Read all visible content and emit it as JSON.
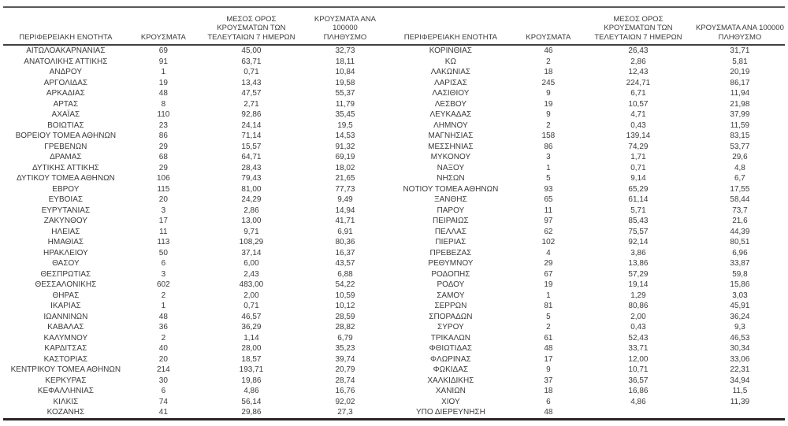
{
  "table": {
    "headers": {
      "region": "ΠΕΡΙΦΕΡΕΙΑΚΗ ΕΝΟΤΗΤΑ",
      "cases": "ΚΡΟΥΣΜΑΤΑ",
      "avg7days": "ΜΕΣΟΣ ΟΡΟΣ\nΚΡΟΥΣΜΑΤΩΝ ΤΩΝ\nΤΕΛΕΥΤΑΙΩΝ 7 ΗΜΕΡΩΝ",
      "per100k": "ΚΡΟΥΣΜΑΤΑ ΑΝΑ 100000\nΠΛΗΘΥΣΜΟ"
    },
    "rows_left": [
      [
        "ΑΙΤΩΛΟΑΚΑΡΝΑΝΙΑΣ",
        "69",
        "45,00",
        "32,73"
      ],
      [
        "ΑΝΑΤΟΛΙΚΗΣ ΑΤΤΙΚΗΣ",
        "91",
        "63,71",
        "18,11"
      ],
      [
        "ΑΝΔΡΟΥ",
        "1",
        "0,71",
        "10,84"
      ],
      [
        "ΑΡΓΟΛΙΔΑΣ",
        "19",
        "13,43",
        "19,58"
      ],
      [
        "ΑΡΚΑΔΙΑΣ",
        "48",
        "47,57",
        "55,37"
      ],
      [
        "ΑΡΤΑΣ",
        "8",
        "2,71",
        "11,79"
      ],
      [
        "ΑΧΑΪΑΣ",
        "110",
        "92,86",
        "35,45"
      ],
      [
        "ΒΟΙΩΤΙΑΣ",
        "23",
        "24,14",
        "19,5"
      ],
      [
        "ΒΟΡΕΙΟΥ ΤΟΜΕΑ ΑΘΗΝΩΝ",
        "86",
        "71,14",
        "14,53"
      ],
      [
        "ΓΡΕΒΕΝΩΝ",
        "29",
        "15,57",
        "91,32"
      ],
      [
        "ΔΡΑΜΑΣ",
        "68",
        "64,71",
        "69,19"
      ],
      [
        "ΔΥΤΙΚΗΣ ΑΤΤΙΚΗΣ",
        "29",
        "28,43",
        "18,02"
      ],
      [
        "ΔΥΤΙΚΟΥ ΤΟΜΕΑ ΑΘΗΝΩΝ",
        "106",
        "79,43",
        "21,65"
      ],
      [
        "ΕΒΡΟΥ",
        "115",
        "81,00",
        "77,73"
      ],
      [
        "ΕΥΒΟΙΑΣ",
        "20",
        "24,29",
        "9,49"
      ],
      [
        "ΕΥΡΥΤΑΝΙΑΣ",
        "3",
        "2,86",
        "14,94"
      ],
      [
        "ΖΑΚΥΝΘΟΥ",
        "17",
        "13,00",
        "41,71"
      ],
      [
        "ΗΛΕΙΑΣ",
        "11",
        "9,71",
        "6,91"
      ],
      [
        "ΗΜΑΘΙΑΣ",
        "113",
        "108,29",
        "80,36"
      ],
      [
        "ΗΡΑΚΛΕΙΟΥ",
        "50",
        "37,14",
        "16,37"
      ],
      [
        "ΘΑΣΟΥ",
        "6",
        "6,00",
        "43,57"
      ],
      [
        "ΘΕΣΠΡΩΤΙΑΣ",
        "3",
        "2,43",
        "6,88"
      ],
      [
        "ΘΕΣΣΑΛΟΝΙΚΗΣ",
        "602",
        "483,00",
        "54,22"
      ],
      [
        "ΘΗΡΑΣ",
        "2",
        "2,00",
        "10,59"
      ],
      [
        "ΙΚΑΡΙΑΣ",
        "1",
        "0,71",
        "10,12"
      ],
      [
        "ΙΩΑΝΝΙΝΩΝ",
        "48",
        "46,57",
        "28,59"
      ],
      [
        "ΚΑΒΑΛΑΣ",
        "36",
        "36,29",
        "28,82"
      ],
      [
        "ΚΑΛΥΜΝΟΥ",
        "2",
        "1,14",
        "6,79"
      ],
      [
        "ΚΑΡΔΙΤΣΑΣ",
        "40",
        "28,00",
        "35,23"
      ],
      [
        "ΚΑΣΤΟΡΙΑΣ",
        "20",
        "18,57",
        "39,74"
      ],
      [
        "ΚΕΝΤΡΙΚΟΥ ΤΟΜΕΑ ΑΘΗΝΩΝ",
        "214",
        "193,71",
        "20,79"
      ],
      [
        "ΚΕΡΚΥΡΑΣ",
        "30",
        "19,86",
        "28,74"
      ],
      [
        "ΚΕΦΑΛΛΗΝΙΑΣ",
        "6",
        "4,86",
        "16,76"
      ],
      [
        "ΚΙΛΚΙΣ",
        "74",
        "56,14",
        "92,02"
      ],
      [
        "ΚΟΖΑΝΗΣ",
        "41",
        "29,86",
        "27,3"
      ]
    ],
    "rows_right": [
      [
        "ΚΟΡΙΝΘΙΑΣ",
        "46",
        "26,43",
        "31,71"
      ],
      [
        "ΚΩ",
        "2",
        "2,86",
        "5,81"
      ],
      [
        "ΛΑΚΩΝΙΑΣ",
        "18",
        "12,43",
        "20,19"
      ],
      [
        "ΛΑΡΙΣΑΣ",
        "245",
        "224,71",
        "86,17"
      ],
      [
        "ΛΑΣΙΘΙΟΥ",
        "9",
        "6,71",
        "11,94"
      ],
      [
        "ΛΕΣΒΟΥ",
        "19",
        "10,57",
        "21,98"
      ],
      [
        "ΛΕΥΚΑΔΑΣ",
        "9",
        "4,71",
        "37,99"
      ],
      [
        "ΛΗΜΝΟΥ",
        "2",
        "0,43",
        "11,59"
      ],
      [
        "ΜΑΓΝΗΣΙΑΣ",
        "158",
        "139,14",
        "83,15"
      ],
      [
        "ΜΕΣΣΗΝΙΑΣ",
        "86",
        "74,29",
        "53,77"
      ],
      [
        "ΜΥΚΟΝΟΥ",
        "3",
        "1,71",
        "29,6"
      ],
      [
        "ΝΑΞΟΥ",
        "1",
        "0,71",
        "4,8"
      ],
      [
        "ΝΗΣΩΝ",
        "5",
        "9,14",
        "6,7"
      ],
      [
        "ΝΟΤΙΟΥ ΤΟΜΕΑ ΑΘΗΝΩΝ",
        "93",
        "65,29",
        "17,55"
      ],
      [
        "ΞΑΝΘΗΣ",
        "65",
        "61,14",
        "58,44"
      ],
      [
        "ΠΑΡΟΥ",
        "11",
        "5,71",
        "73,7"
      ],
      [
        "ΠΕΙΡΑΙΩΣ",
        "97",
        "85,43",
        "21,6"
      ],
      [
        "ΠΕΛΛΑΣ",
        "62",
        "75,57",
        "44,39"
      ],
      [
        "ΠΙΕΡΙΑΣ",
        "102",
        "92,14",
        "80,51"
      ],
      [
        "ΠΡΕΒΕΖΑΣ",
        "4",
        "3,86",
        "6,96"
      ],
      [
        "ΡΕΘΥΜΝΟΥ",
        "29",
        "13,86",
        "33,87"
      ],
      [
        "ΡΟΔΟΠΗΣ",
        "67",
        "57,29",
        "59,8"
      ],
      [
        "ΡΟΔΟΥ",
        "19",
        "19,14",
        "15,86"
      ],
      [
        "ΣΑΜΟΥ",
        "1",
        "1,29",
        "3,03"
      ],
      [
        "ΣΕΡΡΩΝ",
        "81",
        "80,86",
        "45,91"
      ],
      [
        "ΣΠΟΡΑΔΩΝ",
        "5",
        "2,00",
        "36,24"
      ],
      [
        "ΣΥΡΟΥ",
        "2",
        "0,43",
        "9,3"
      ],
      [
        "ΤΡΙΚΑΛΩΝ",
        "61",
        "52,43",
        "46,53"
      ],
      [
        "ΦΘΙΩΤΙΔΑΣ",
        "48",
        "33,71",
        "30,34"
      ],
      [
        "ΦΛΩΡΙΝΑΣ",
        "17",
        "12,00",
        "33,06"
      ],
      [
        "ΦΩΚΙΔΑΣ",
        "9",
        "10,71",
        "22,31"
      ],
      [
        "ΧΑΛΚΙΔΙΚΗΣ",
        "37",
        "36,57",
        "34,94"
      ],
      [
        "ΧΑΝΙΩΝ",
        "18",
        "16,86",
        "11,5"
      ],
      [
        "ΧΙΟΥ",
        "6",
        "4,86",
        "11,39"
      ],
      [
        "ΥΠΟ ΔΙΕΡΕΥΝΗΣΗ",
        "48",
        "",
        ""
      ]
    ],
    "colors": {
      "text": "#3b3b3b",
      "rule_top": "#595959",
      "rule_header": "#404040",
      "rule_bottom": "#262626"
    }
  }
}
